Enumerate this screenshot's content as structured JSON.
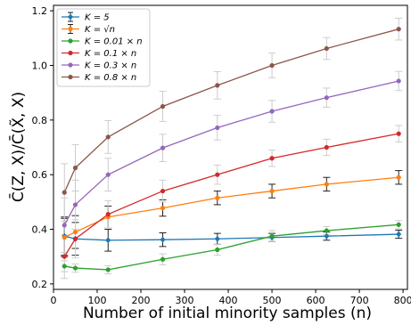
{
  "chart_data": {
    "type": "line",
    "xlabel": "Number of initial minority samples (n)",
    "ylabel": "C̄(Z, X)/C̄(X̃, X)",
    "xlim": [
      0,
      810
    ],
    "ylim": [
      0.18,
      1.22
    ],
    "xticks": [
      0,
      100,
      200,
      300,
      400,
      500,
      600,
      700,
      800
    ],
    "yticks": [
      0.2,
      0.4,
      0.6,
      0.8,
      1.0,
      1.2
    ],
    "xtick_labels": [
      "0",
      "100",
      "200",
      "300",
      "400",
      "500",
      "600",
      "700",
      "800"
    ],
    "ytick_labels": [
      "0.2",
      "0.4",
      "0.6",
      "0.8",
      "1.0",
      "1.2"
    ],
    "grid": false,
    "legend_position": "top-left",
    "x": [
      25,
      50,
      125,
      250,
      375,
      500,
      625,
      790
    ],
    "series": [
      {
        "name": "K = 5",
        "color": "#1f77b4",
        "marker": "diamond",
        "values": [
          0.375,
          0.365,
          0.36,
          0.362,
          0.365,
          0.37,
          0.375,
          0.382
        ],
        "errors": [
          0.07,
          0.06,
          0.04,
          0.025,
          0.02,
          0.015,
          0.015,
          0.015
        ]
      },
      {
        "name": "K = √n",
        "color": "#ff7f0e",
        "marker": "circle",
        "values": [
          0.37,
          0.39,
          0.445,
          0.478,
          0.515,
          0.54,
          0.565,
          0.59
        ],
        "errors": [
          0.07,
          0.06,
          0.04,
          0.03,
          0.025,
          0.025,
          0.025,
          0.025
        ]
      },
      {
        "name": "K = 0.01 × n",
        "color": "#2ca02c",
        "marker": "circle",
        "values": [
          0.265,
          0.258,
          0.252,
          0.29,
          0.325,
          0.375,
          0.395,
          0.417
        ],
        "errors": [
          0.02,
          0.015,
          0.015,
          0.02,
          0.02,
          0.02,
          0.015,
          0.015
        ]
      },
      {
        "name": "K = 0.1 × n",
        "color": "#d62728",
        "marker": "circle",
        "values": [
          0.3,
          0.365,
          0.455,
          0.54,
          0.6,
          0.66,
          0.7,
          0.75
        ],
        "errors": [
          0.08,
          0.07,
          0.05,
          0.04,
          0.035,
          0.03,
          0.03,
          0.03
        ]
      },
      {
        "name": "K = 0.3 × n",
        "color": "#9467bd",
        "marker": "circle",
        "values": [
          0.415,
          0.49,
          0.6,
          0.698,
          0.772,
          0.832,
          0.882,
          0.943
        ],
        "errors": [
          0.1,
          0.09,
          0.06,
          0.05,
          0.045,
          0.04,
          0.035,
          0.035
        ]
      },
      {
        "name": "K = 0.8 × n",
        "color": "#8c564b",
        "marker": "circle",
        "values": [
          0.535,
          0.625,
          0.738,
          0.85,
          0.927,
          1.0,
          1.062,
          1.133
        ],
        "errors": [
          0.105,
          0.085,
          0.06,
          0.055,
          0.05,
          0.045,
          0.04,
          0.04
        ]
      }
    ]
  }
}
